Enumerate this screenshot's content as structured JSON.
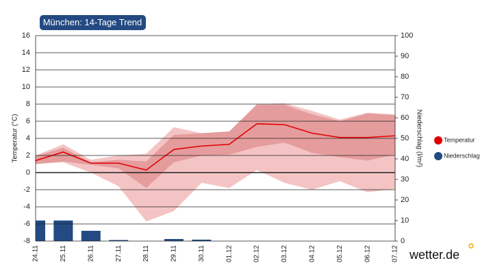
{
  "chart_data": {
    "type": "line",
    "title": "München: 14-Tage Trend",
    "y_label": "Temperatur (°C)",
    "y2_label": "Niederschlag (l/m²)",
    "brand": "wetter.de",
    "categories": [
      "24.11",
      "25.11",
      "26.11",
      "27.11",
      "28.11",
      "29.11",
      "30.11",
      "01.12",
      "02.12",
      "03.12",
      "04.12",
      "05.12",
      "06.12",
      "07.12"
    ],
    "ylim": [
      -8,
      16
    ],
    "yticks": [
      -8,
      -6,
      -4,
      -2,
      0,
      2,
      4,
      6,
      8,
      10,
      12,
      14,
      16
    ],
    "y2lim": [
      0,
      100
    ],
    "y2ticks": [
      0,
      10,
      20,
      30,
      40,
      50,
      60,
      70,
      80,
      90,
      100
    ],
    "grid": true,
    "legend": "right",
    "bands": [
      {
        "color": "#f4c4c4",
        "upper": [
          2.0,
          3.3,
          1.5,
          2.0,
          2.2,
          5.3,
          4.6,
          4.8,
          8.0,
          8.1,
          7.2,
          6.2,
          7.0,
          6.8
        ],
        "lower": [
          1.0,
          1.2,
          0.0,
          -1.6,
          -5.7,
          -4.5,
          -1.2,
          -1.8,
          0.3,
          -1.2,
          -2.0,
          -1.0,
          -2.3,
          -1.9
        ]
      },
      {
        "color": "#e59c9c",
        "upper": [
          1.9,
          2.9,
          1.2,
          1.5,
          1.3,
          4.4,
          4.6,
          4.8,
          7.9,
          7.9,
          6.8,
          6.0,
          6.9,
          6.7
        ],
        "lower": [
          1.0,
          1.3,
          0.9,
          0.5,
          -1.8,
          1.2,
          2.0,
          2.1,
          3.0,
          3.5,
          2.3,
          1.8,
          1.4,
          2.1
        ]
      }
    ],
    "series": [
      {
        "name": "Temperatur",
        "type": "line",
        "color": "#e00000",
        "values": [
          1.4,
          2.4,
          1.1,
          1.1,
          0.3,
          2.7,
          3.1,
          3.3,
          5.7,
          5.6,
          4.6,
          4.1,
          4.1,
          4.3
        ]
      },
      {
        "name": "Niederschlag",
        "type": "bar",
        "axis": "y2",
        "color": "#234a82",
        "values": [
          10,
          10,
          5,
          0.5,
          0,
          1,
          0.7,
          0,
          0,
          0,
          0,
          0,
          0,
          0
        ]
      }
    ]
  }
}
